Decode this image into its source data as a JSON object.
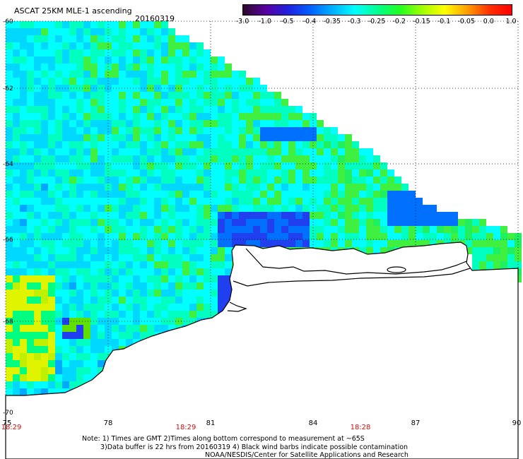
{
  "header": {
    "title": "ASCAT 25KM MLE-1 ascending",
    "date": "20160319"
  },
  "colorbar": {
    "ticks": [
      "-3.0",
      "-1.0",
      "-0.5",
      "-0.4",
      "-0.35",
      "-0.3",
      "-0.25",
      "-0.2",
      "-0.15",
      "-0.1",
      "-0.05",
      "0.0",
      "1.0"
    ],
    "colors": [
      "#2a0a2a",
      "#5a00a0",
      "#2020e0",
      "#0060ff",
      "#00b0ff",
      "#00ffff",
      "#00ff90",
      "#20ff20",
      "#a0ff00",
      "#ffff00",
      "#ffa000",
      "#ff3000",
      "#ff0000"
    ]
  },
  "map": {
    "lat_labels": [
      "-60",
      "-62",
      "-64",
      "-66",
      "-68",
      "-70"
    ],
    "lon_labels": [
      "75",
      "78",
      "81",
      "84",
      "87",
      "90"
    ],
    "time_labels": [
      "18:29",
      "18:29",
      "18:28"
    ]
  },
  "footer": {
    "note_line1": "Note: 1) Times are GMT 2)Times along bottom correspond to measurement at ~65S",
    "note_line2": "3)Data buffer is 22 hrs from 20160319 4) Black wind barbs indicate possible contamination",
    "note_line3": "NOAA/NESDIS/Center for Satellite Applications and Research"
  }
}
